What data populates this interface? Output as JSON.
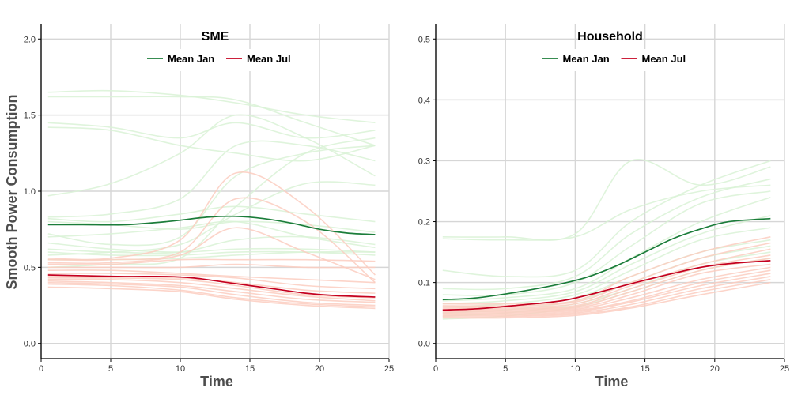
{
  "ylabel": "Smooth Power Consumption",
  "colors": {
    "mean_jan": "#1b7d3a",
    "mean_jul": "#c4001f",
    "bg_jan": "#d9f2d6",
    "bg_jul": "#fccdbf",
    "grid": "#d6d6d6",
    "axis": "#000000"
  },
  "chart_data": [
    {
      "type": "line",
      "title": "SME",
      "xlabel": "Time",
      "ylabel": "Smooth Power Consumption",
      "xlim": [
        0,
        25
      ],
      "ylim": [
        -0.1,
        2.1
      ],
      "xticks": [
        0,
        5,
        10,
        15,
        20,
        25
      ],
      "yticks": [
        0.0,
        0.5,
        1.0,
        1.5,
        2.0
      ],
      "ytick_labels": [
        "0.0",
        "0.5",
        "1.0",
        "1.5",
        "2.0"
      ],
      "legend": [
        "Mean Jan",
        "Mean Jul"
      ],
      "series": [
        {
          "name": "Mean Jan",
          "x": [
            0.5,
            3,
            6,
            9,
            12,
            14,
            16,
            18,
            20,
            22,
            24
          ],
          "y": [
            0.78,
            0.78,
            0.78,
            0.8,
            0.83,
            0.835,
            0.82,
            0.79,
            0.75,
            0.725,
            0.715
          ]
        },
        {
          "name": "Mean Jul",
          "x": [
            0.5,
            3,
            6,
            9,
            11,
            13,
            15,
            17,
            19,
            21,
            24
          ],
          "y": [
            0.45,
            0.445,
            0.44,
            0.44,
            0.43,
            0.405,
            0.38,
            0.355,
            0.33,
            0.315,
            0.305
          ]
        }
      ],
      "background_series": {
        "jan": [
          [
            1.65,
            1.66,
            1.63,
            1.58,
            1.5,
            1.45
          ],
          [
            1.62,
            1.62,
            1.62,
            1.6,
            1.45,
            1.3
          ],
          [
            1.45,
            1.42,
            1.35,
            1.45,
            1.35,
            1.4
          ],
          [
            1.42,
            1.4,
            1.3,
            1.25,
            1.2,
            1.3
          ],
          [
            0.97,
            1.05,
            1.25,
            1.5,
            1.35,
            1.1
          ],
          [
            0.83,
            0.85,
            0.95,
            1.3,
            1.3,
            1.2
          ],
          [
            0.82,
            0.8,
            0.85,
            0.9,
            0.85,
            0.8
          ],
          [
            0.8,
            0.78,
            0.75,
            0.8,
            0.78,
            0.73
          ],
          [
            0.7,
            0.72,
            0.76,
            0.8,
            0.7,
            0.63
          ],
          [
            0.72,
            0.65,
            0.7,
            1.1,
            1.25,
            1.3
          ],
          [
            0.66,
            0.62,
            0.6,
            0.62,
            0.62,
            0.6
          ],
          [
            0.62,
            0.6,
            0.6,
            0.68,
            0.7,
            0.65
          ],
          [
            0.6,
            0.58,
            0.58,
            0.6,
            0.6,
            0.58
          ],
          [
            0.58,
            0.6,
            0.65,
            0.85,
            1.05,
            1.04
          ],
          [
            0.55,
            0.55,
            0.56,
            0.58,
            0.6,
            0.6
          ],
          [
            0.5,
            0.52,
            0.56,
            0.9,
            1.25,
            1.35
          ]
        ],
        "jul": [
          [
            0.56,
            0.56,
            0.68,
            1.12,
            0.9,
            0.45
          ],
          [
            0.55,
            0.55,
            0.6,
            0.95,
            0.8,
            0.4
          ],
          [
            0.53,
            0.53,
            0.58,
            0.76,
            0.6,
            0.42
          ],
          [
            0.52,
            0.52,
            0.55,
            0.55,
            0.55,
            0.54
          ],
          [
            0.5,
            0.5,
            0.5,
            0.52,
            0.5,
            0.5
          ],
          [
            0.48,
            0.48,
            0.46,
            0.44,
            0.42,
            0.4
          ],
          [
            0.46,
            0.46,
            0.45,
            0.43,
            0.38,
            0.36
          ],
          [
            0.44,
            0.44,
            0.43,
            0.4,
            0.35,
            0.33
          ],
          [
            0.43,
            0.43,
            0.42,
            0.38,
            0.32,
            0.3
          ],
          [
            0.42,
            0.42,
            0.4,
            0.36,
            0.31,
            0.28
          ],
          [
            0.41,
            0.4,
            0.38,
            0.34,
            0.29,
            0.27
          ],
          [
            0.4,
            0.39,
            0.37,
            0.32,
            0.27,
            0.25
          ],
          [
            0.39,
            0.38,
            0.35,
            0.3,
            0.26,
            0.24
          ],
          [
            0.37,
            0.36,
            0.34,
            0.29,
            0.25,
            0.23
          ]
        ]
      }
    },
    {
      "type": "line",
      "title": "Household",
      "xlabel": "Time",
      "ylabel": "",
      "xlim": [
        0,
        25
      ],
      "ylim": [
        -0.025,
        0.525
      ],
      "xticks": [
        0,
        5,
        10,
        15,
        20,
        25
      ],
      "yticks": [
        0.0,
        0.1,
        0.2,
        0.3,
        0.4,
        0.5
      ],
      "ytick_labels": [
        "0.0",
        "0.1",
        "0.2",
        "0.3",
        "0.4",
        "0.5"
      ],
      "legend": [
        "Mean Jan",
        "Mean Jul"
      ],
      "series": [
        {
          "name": "Mean Jan",
          "x": [
            0.5,
            3,
            6,
            9,
            11,
            13,
            15,
            17,
            19,
            21,
            24
          ],
          "y": [
            0.072,
            0.075,
            0.085,
            0.098,
            0.11,
            0.128,
            0.15,
            0.172,
            0.188,
            0.2,
            0.205
          ]
        },
        {
          "name": "Mean Jul",
          "x": [
            0.5,
            3,
            6,
            9,
            11,
            13,
            15,
            17,
            19,
            21,
            24
          ],
          "y": [
            0.055,
            0.057,
            0.063,
            0.07,
            0.08,
            0.092,
            0.104,
            0.115,
            0.125,
            0.131,
            0.136
          ]
        }
      ],
      "background_series": {
        "jan": [
          [
            0.175,
            0.175,
            0.18,
            0.3,
            0.26,
            0.29
          ],
          [
            0.172,
            0.17,
            0.175,
            0.22,
            0.25,
            0.26
          ],
          [
            0.12,
            0.11,
            0.12,
            0.2,
            0.26,
            0.3
          ],
          [
            0.09,
            0.09,
            0.11,
            0.18,
            0.24,
            0.27
          ],
          [
            0.08,
            0.08,
            0.1,
            0.16,
            0.23,
            0.25
          ],
          [
            0.07,
            0.075,
            0.09,
            0.14,
            0.2,
            0.24
          ],
          [
            0.065,
            0.07,
            0.085,
            0.13,
            0.18,
            0.21
          ],
          [
            0.06,
            0.065,
            0.08,
            0.12,
            0.17,
            0.19
          ],
          [
            0.055,
            0.06,
            0.075,
            0.11,
            0.15,
            0.17
          ],
          [
            0.05,
            0.055,
            0.07,
            0.1,
            0.14,
            0.16
          ],
          [
            0.045,
            0.05,
            0.065,
            0.09,
            0.13,
            0.15
          ],
          [
            0.04,
            0.045,
            0.06,
            0.085,
            0.12,
            0.14
          ]
        ],
        "jul": [
          [
            0.065,
            0.065,
            0.07,
            0.11,
            0.15,
            0.175
          ],
          [
            0.062,
            0.062,
            0.068,
            0.1,
            0.14,
            0.165
          ],
          [
            0.06,
            0.06,
            0.065,
            0.095,
            0.13,
            0.155
          ],
          [
            0.058,
            0.058,
            0.062,
            0.09,
            0.125,
            0.145
          ],
          [
            0.056,
            0.056,
            0.06,
            0.085,
            0.12,
            0.14
          ],
          [
            0.054,
            0.054,
            0.058,
            0.08,
            0.115,
            0.13
          ],
          [
            0.052,
            0.052,
            0.056,
            0.075,
            0.105,
            0.125
          ],
          [
            0.05,
            0.05,
            0.054,
            0.07,
            0.1,
            0.12
          ],
          [
            0.048,
            0.048,
            0.052,
            0.068,
            0.095,
            0.115
          ],
          [
            0.046,
            0.046,
            0.05,
            0.064,
            0.09,
            0.11
          ],
          [
            0.044,
            0.044,
            0.048,
            0.06,
            0.085,
            0.105
          ],
          [
            0.042,
            0.042,
            0.046,
            0.058,
            0.08,
            0.1
          ]
        ]
      }
    }
  ]
}
